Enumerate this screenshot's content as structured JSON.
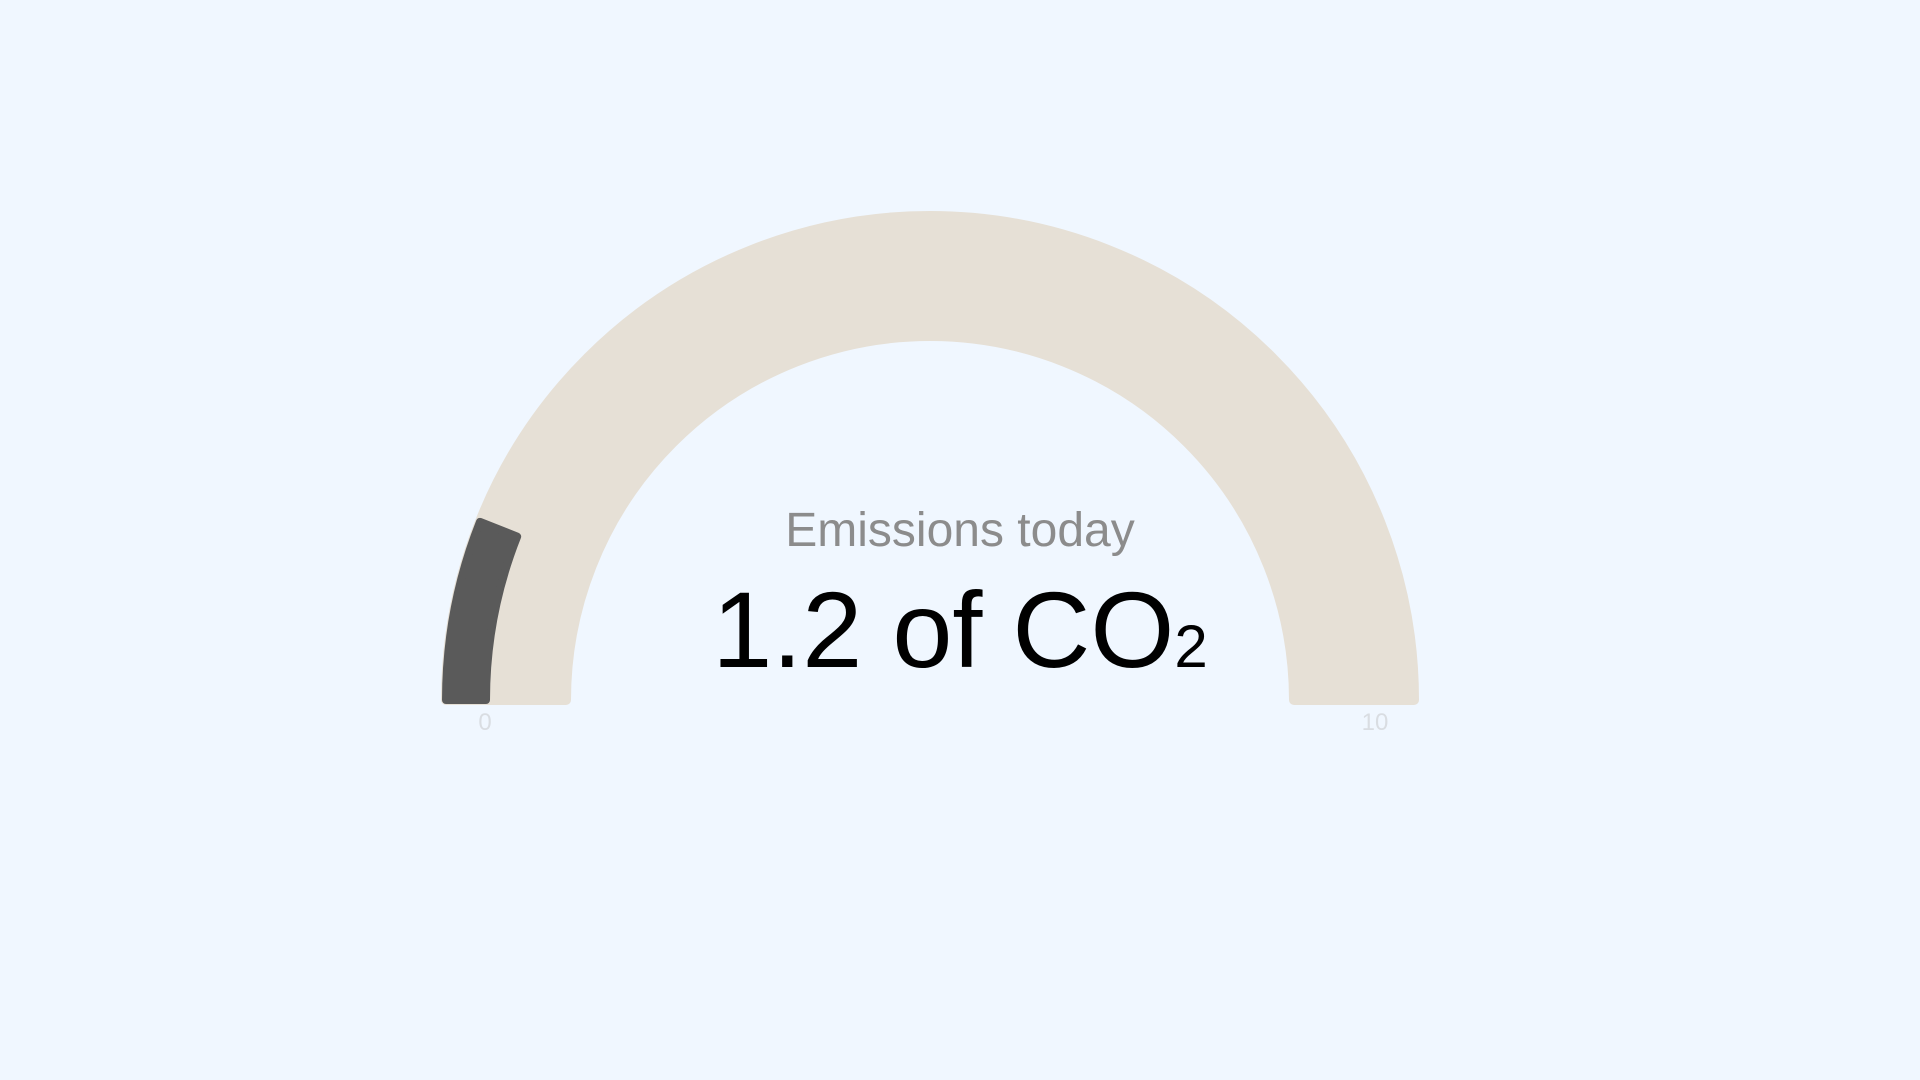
{
  "chart_data": {
    "type": "gauge",
    "title": "Emissions today",
    "value": 1.2,
    "value_text": "1.2",
    "unit_text": "of CO",
    "unit_subscript": "2",
    "min": 0,
    "max": 10,
    "min_label": "0",
    "max_label": "10"
  },
  "colors": {
    "background": "#f0f7ff",
    "track": "#e6e0d6",
    "fill": "#5a5a5a",
    "title": "#8c8c8c",
    "value": "#000000",
    "tick_label": "#d9dde2"
  }
}
